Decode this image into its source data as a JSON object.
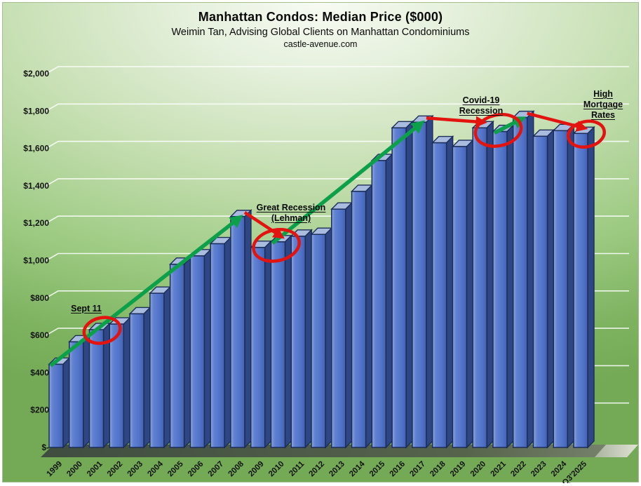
{
  "header": {
    "title": "Manhattan Condos: Median Price ($000)",
    "subtitle": "Weimin Tan, Advising Global Clients on Manhattan Condominiums",
    "website": "castle-avenue.com"
  },
  "chart_data": {
    "type": "bar",
    "title": "Manhattan Condos: Median Price ($000)",
    "xlabel": "",
    "ylabel": "",
    "ylim": [
      0,
      2000
    ],
    "ytick_step": 200,
    "ytick_labels": [
      "$-",
      "$200",
      "$400",
      "$600",
      "$800",
      "$1,000",
      "$1,200",
      "$1,400",
      "$1,600",
      "$1,800",
      "$2,000"
    ],
    "grid": true,
    "legend": "none",
    "style": "3d-bars",
    "categories": [
      "1999",
      "2000",
      "2001",
      "2002",
      "2003",
      "2004",
      "2005",
      "2006",
      "2007",
      "2008",
      "2009",
      "2010",
      "2011",
      "2012",
      "2013",
      "2014",
      "2015",
      "2016",
      "2017",
      "2018",
      "2019",
      "2020",
      "2021",
      "2022",
      "2023",
      "2024",
      "Q3'2025"
    ],
    "values": [
      445,
      565,
      630,
      660,
      715,
      825,
      980,
      1025,
      1090,
      1235,
      1070,
      1100,
      1130,
      1140,
      1275,
      1370,
      1535,
      1710,
      1740,
      1630,
      1610,
      1710,
      1690,
      1765,
      1665,
      1695,
      1680
    ],
    "annotations": [
      {
        "label": "Sept 11",
        "circled_years": [
          "2001"
        ]
      },
      {
        "label": "Great Recession\n(Lehman)",
        "circled_years": [
          "2009",
          "2010"
        ],
        "red_arrow": {
          "from": "2008",
          "to": "2010"
        }
      },
      {
        "label": "Covid-19\nRecession",
        "circled_years": [
          "2020",
          "2021"
        ],
        "red_arrow": {
          "from": "2017",
          "to": "2020"
        }
      },
      {
        "label": "High\nMortgage Rates",
        "circled_years": [
          "Q3'2025"
        ],
        "red_arrow": {
          "from": "2022",
          "to": "Q3'2025"
        }
      }
    ],
    "trend_arrows": [
      {
        "from": "1999",
        "to": "2008"
      },
      {
        "from": "2010",
        "to": "2017"
      },
      {
        "from": "2021",
        "to": "2022"
      }
    ],
    "colors": {
      "bar_front_light": "#8ea6dc",
      "bar_front": "#5274c9",
      "bar_front_dark": "#4462b4",
      "bar_top": "#a9bce0",
      "bar_side": "#2f4684",
      "bar_outline": "#1c2d58",
      "trend_arrow_green": "#0da04a",
      "alert_red": "#e3130f",
      "gridline": "#ffffff",
      "axis_text": "#141414"
    }
  }
}
